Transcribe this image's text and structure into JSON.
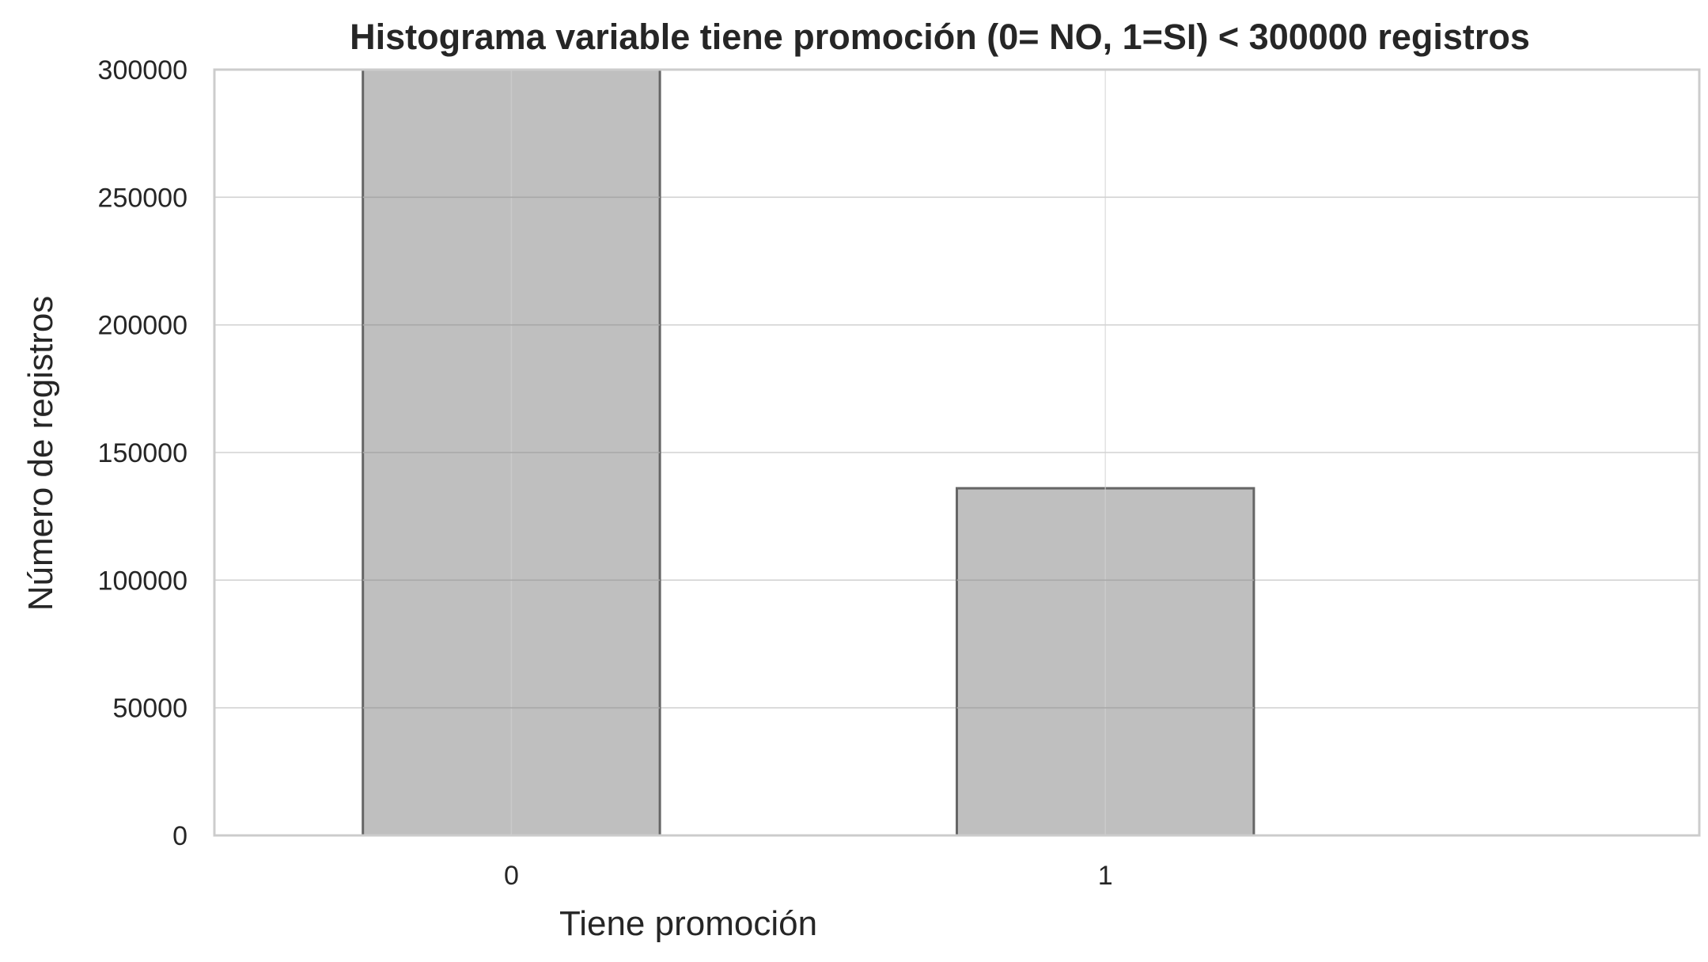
{
  "chart_data": {
    "type": "bar",
    "title": "Histograma variable tiene promoción (0= NO, 1=SI) < 300000 registros",
    "xlabel": "Tiene promoción",
    "ylabel": "Número de registros",
    "categories": [
      "0",
      "1"
    ],
    "values": [
      300000,
      136000
    ],
    "ylim": [
      0,
      300000
    ],
    "yticks": [
      "0",
      "50000",
      "100000",
      "150000",
      "200000",
      "250000",
      "300000"
    ],
    "xlim": [
      -0.5,
      2.0
    ],
    "bar_width": 0.5,
    "grid": true,
    "legend": null,
    "colors": {
      "bar_fill": "#bfbfbf",
      "bar_edge": "#666666",
      "grid": "#d2d2d2",
      "frame": "#cccccc",
      "text": "#262626"
    }
  }
}
